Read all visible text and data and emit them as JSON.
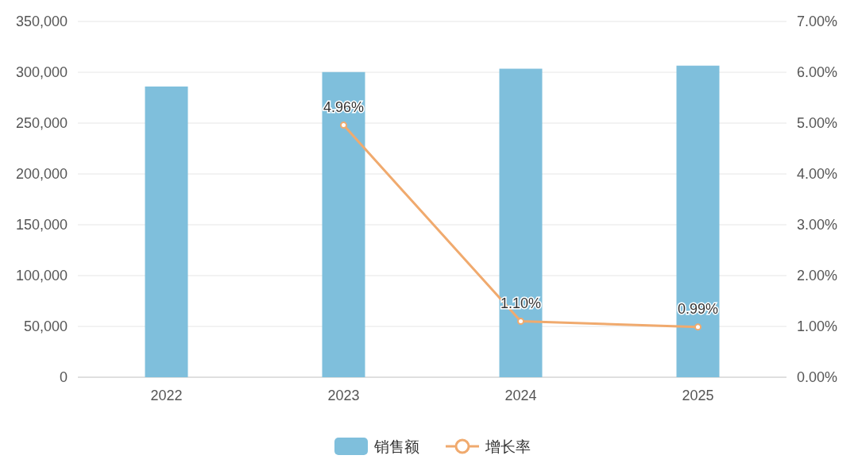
{
  "chart_data": {
    "type": "bar",
    "categories": [
      "2022",
      "2023",
      "2024",
      "2025"
    ],
    "series": [
      {
        "name": "销售额",
        "color": "#7fbfdc",
        "values": [
          286000,
          300200,
          303500,
          306500
        ]
      },
      {
        "name": "增长率",
        "type": "line",
        "axis": "y2",
        "color": "#f0aa6e",
        "marker": "circle",
        "values": [
          null,
          4.96,
          1.1,
          0.99
        ],
        "value_labels": [
          null,
          "4.96%",
          "1.10%",
          "0.99%"
        ]
      }
    ],
    "ylim": [
      0,
      350000
    ],
    "yticks": [
      {
        "value": 0,
        "label": "0"
      },
      {
        "value": 50000,
        "label": "50,000"
      },
      {
        "value": 100000,
        "label": "100,000"
      },
      {
        "value": 150000,
        "label": "150,000"
      },
      {
        "value": 200000,
        "label": "200,000"
      },
      {
        "value": 250000,
        "label": "250,000"
      },
      {
        "value": 300000,
        "label": "300,000"
      },
      {
        "value": 350000,
        "label": "350,000"
      }
    ],
    "y2lim": [
      0,
      7
    ],
    "y2ticks": [
      {
        "value": 0,
        "label": "0.00%"
      },
      {
        "value": 1,
        "label": "1.00%"
      },
      {
        "value": 2,
        "label": "2.00%"
      },
      {
        "value": 3,
        "label": "3.00%"
      },
      {
        "value": 4,
        "label": "4.00%"
      },
      {
        "value": 5,
        "label": "5.00%"
      },
      {
        "value": 6,
        "label": "6.00%"
      },
      {
        "value": 7,
        "label": "7.00%"
      }
    ],
    "grid": "y",
    "legend": "bottom"
  }
}
